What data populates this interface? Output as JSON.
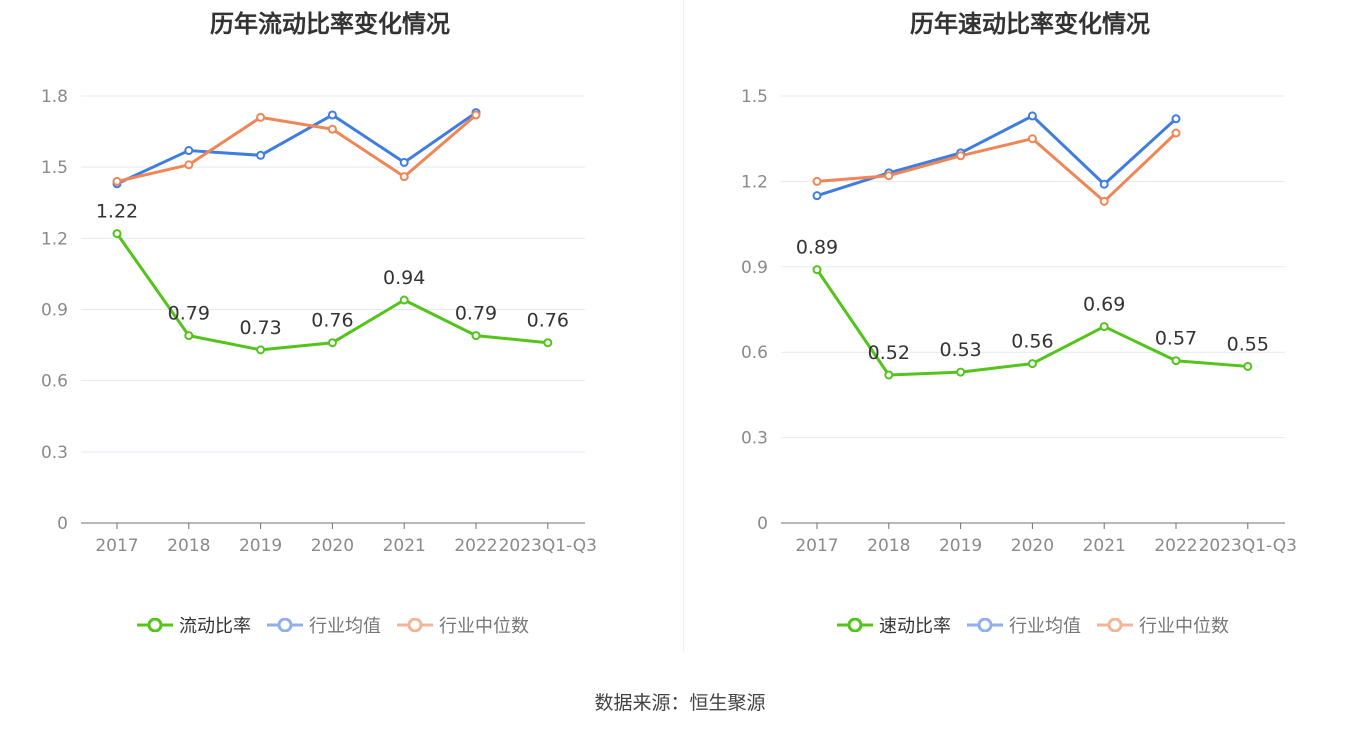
{
  "chart_data": [
    {
      "type": "line",
      "title": "历年流动比率变化情况",
      "categories": [
        "2017",
        "2018",
        "2019",
        "2020",
        "2021",
        "2022",
        "2023Q1-Q3"
      ],
      "ylim": [
        0,
        1.8
      ],
      "yticks": [
        "0",
        "0.3",
        "0.6",
        "0.9",
        "1.2",
        "1.5",
        "1.8"
      ],
      "grid": true,
      "legend_position": "bottom",
      "series": [
        {
          "name": "流动比率",
          "color": "#52c41a",
          "values": [
            1.22,
            0.79,
            0.73,
            0.76,
            0.94,
            0.79,
            0.76
          ],
          "labels": [
            "1.22",
            "0.79",
            "0.73",
            "0.76",
            "0.94",
            "0.79",
            "0.76"
          ]
        },
        {
          "name": "行业均值",
          "color": "#3f7de0",
          "values": [
            1.43,
            1.57,
            1.55,
            1.72,
            1.52,
            1.73,
            null
          ]
        },
        {
          "name": "行业中位数",
          "color": "#f08656",
          "values": [
            1.44,
            1.51,
            1.71,
            1.66,
            1.46,
            1.72,
            null
          ]
        }
      ]
    },
    {
      "type": "line",
      "title": "历年速动比率变化情况",
      "categories": [
        "2017",
        "2018",
        "2019",
        "2020",
        "2021",
        "2022",
        "2023Q1-Q3"
      ],
      "ylim": [
        0,
        1.5
      ],
      "yticks": [
        "0",
        "0.3",
        "0.6",
        "0.9",
        "1.2",
        "1.5"
      ],
      "grid": true,
      "legend_position": "bottom",
      "series": [
        {
          "name": "速动比率",
          "color": "#52c41a",
          "values": [
            0.89,
            0.52,
            0.53,
            0.56,
            0.69,
            0.57,
            0.55
          ],
          "labels": [
            "0.89",
            "0.52",
            "0.53",
            "0.56",
            "0.69",
            "0.57",
            "0.55"
          ]
        },
        {
          "name": "行业均值",
          "color": "#3f7de0",
          "values": [
            1.15,
            1.23,
            1.3,
            1.43,
            1.19,
            1.42,
            null
          ]
        },
        {
          "name": "行业中位数",
          "color": "#f08656",
          "values": [
            1.2,
            1.22,
            1.29,
            1.35,
            1.13,
            1.37,
            null
          ]
        }
      ]
    }
  ],
  "footer": {
    "source": "数据来源：恒生聚源"
  }
}
